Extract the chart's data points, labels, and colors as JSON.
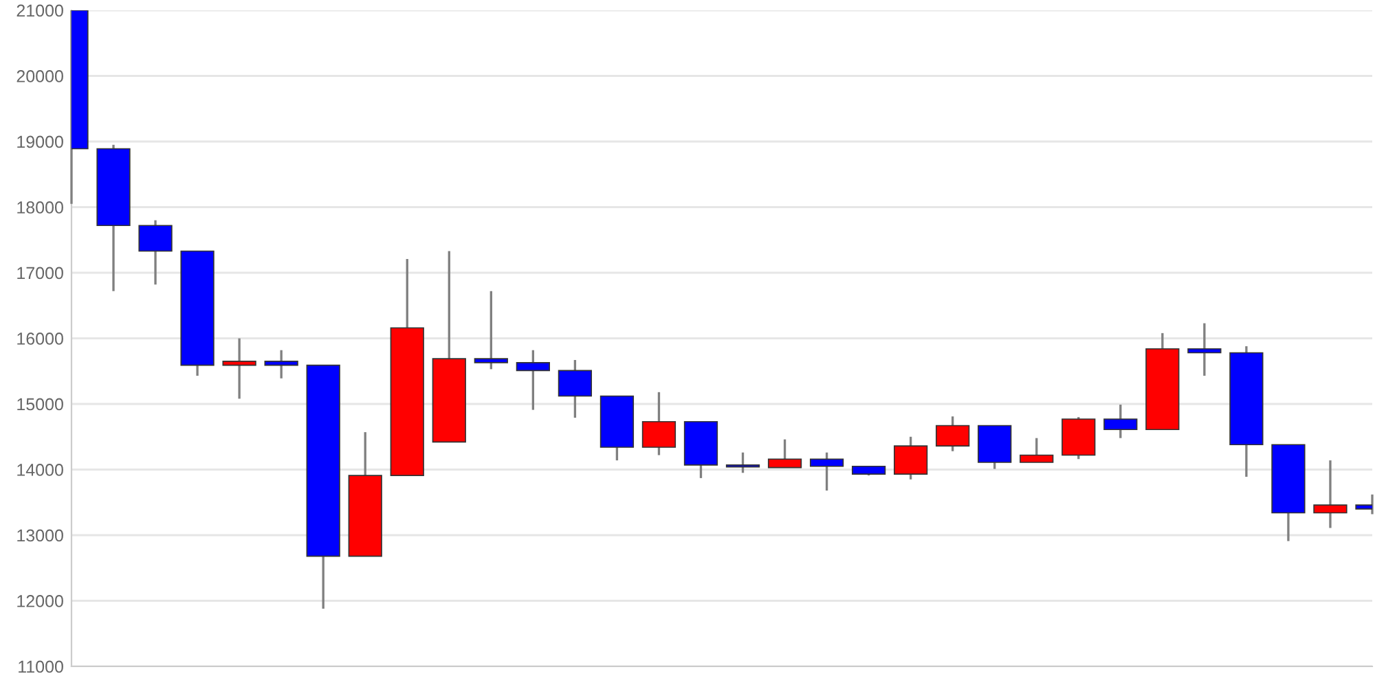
{
  "chart_data": {
    "type": "candlestick",
    "categories": [
      null,
      null,
      null,
      null,
      null,
      null,
      null,
      null,
      null,
      null,
      null,
      null,
      null,
      null,
      null,
      null,
      null,
      null,
      null,
      null,
      null,
      null,
      null,
      null,
      null,
      null,
      null,
      null,
      null,
      null,
      null,
      null
    ],
    "ohlc": [
      [
        21000,
        21000,
        18050,
        18890
      ],
      [
        18890,
        18950,
        16720,
        17720
      ],
      [
        17720,
        17800,
        16820,
        17330
      ],
      [
        17330,
        17330,
        15430,
        15590
      ],
      [
        15590,
        16000,
        15080,
        15650
      ],
      [
        15650,
        15820,
        15390,
        15590
      ],
      [
        15590,
        15590,
        11880,
        12680
      ],
      [
        12680,
        14570,
        12680,
        13910
      ],
      [
        13910,
        17210,
        13910,
        16160
      ],
      [
        14420,
        17330,
        14420,
        15690
      ],
      [
        15690,
        16720,
        15530,
        15630
      ],
      [
        15630,
        15820,
        14910,
        15510
      ],
      [
        15510,
        15670,
        14790,
        15120
      ],
      [
        15120,
        15120,
        14140,
        14340
      ],
      [
        14340,
        15180,
        14220,
        14730
      ],
      [
        14730,
        14730,
        13870,
        14070
      ],
      [
        14070,
        14260,
        13950,
        14040
      ],
      [
        14030,
        14460,
        14030,
        14160
      ],
      [
        14160,
        14260,
        13680,
        14050
      ],
      [
        14050,
        14050,
        13910,
        13930
      ],
      [
        13930,
        14500,
        13850,
        14360
      ],
      [
        14360,
        14810,
        14280,
        14670
      ],
      [
        14670,
        14670,
        14010,
        14110
      ],
      [
        14110,
        14480,
        14110,
        14220
      ],
      [
        14220,
        14800,
        14160,
        14770
      ],
      [
        14770,
        14990,
        14480,
        14610
      ],
      [
        14610,
        16080,
        14610,
        15840
      ],
      [
        15840,
        16230,
        15430,
        15780
      ],
      [
        15780,
        15880,
        13890,
        14380
      ],
      [
        14380,
        14380,
        12910,
        13340
      ],
      [
        13340,
        14140,
        13110,
        13460
      ],
      [
        13460,
        13620,
        13320,
        13400
      ]
    ],
    "colors": [
      "#0000ff",
      "#0000ff",
      "#0000ff",
      "#0000ff",
      "#ff0000",
      "#0000ff",
      "#0000ff",
      "#ff0000",
      "#ff0000",
      "#ff0000",
      "#0000ff",
      "#0000ff",
      "#0000ff",
      "#0000ff",
      "#ff0000",
      "#0000ff",
      "#0000ff",
      "#ff0000",
      "#0000ff",
      "#0000ff",
      "#ff0000",
      "#ff0000",
      "#0000ff",
      "#ff0000",
      "#ff0000",
      "#0000ff",
      "#ff0000",
      "#0000ff",
      "#0000ff",
      "#0000ff",
      "#ff0000",
      "#0000ff"
    ],
    "ylim": [
      11000,
      21000
    ],
    "yticks": [
      11000,
      12000,
      13000,
      14000,
      15000,
      16000,
      17000,
      18000,
      19000,
      20000,
      21000
    ],
    "grid": "y"
  }
}
